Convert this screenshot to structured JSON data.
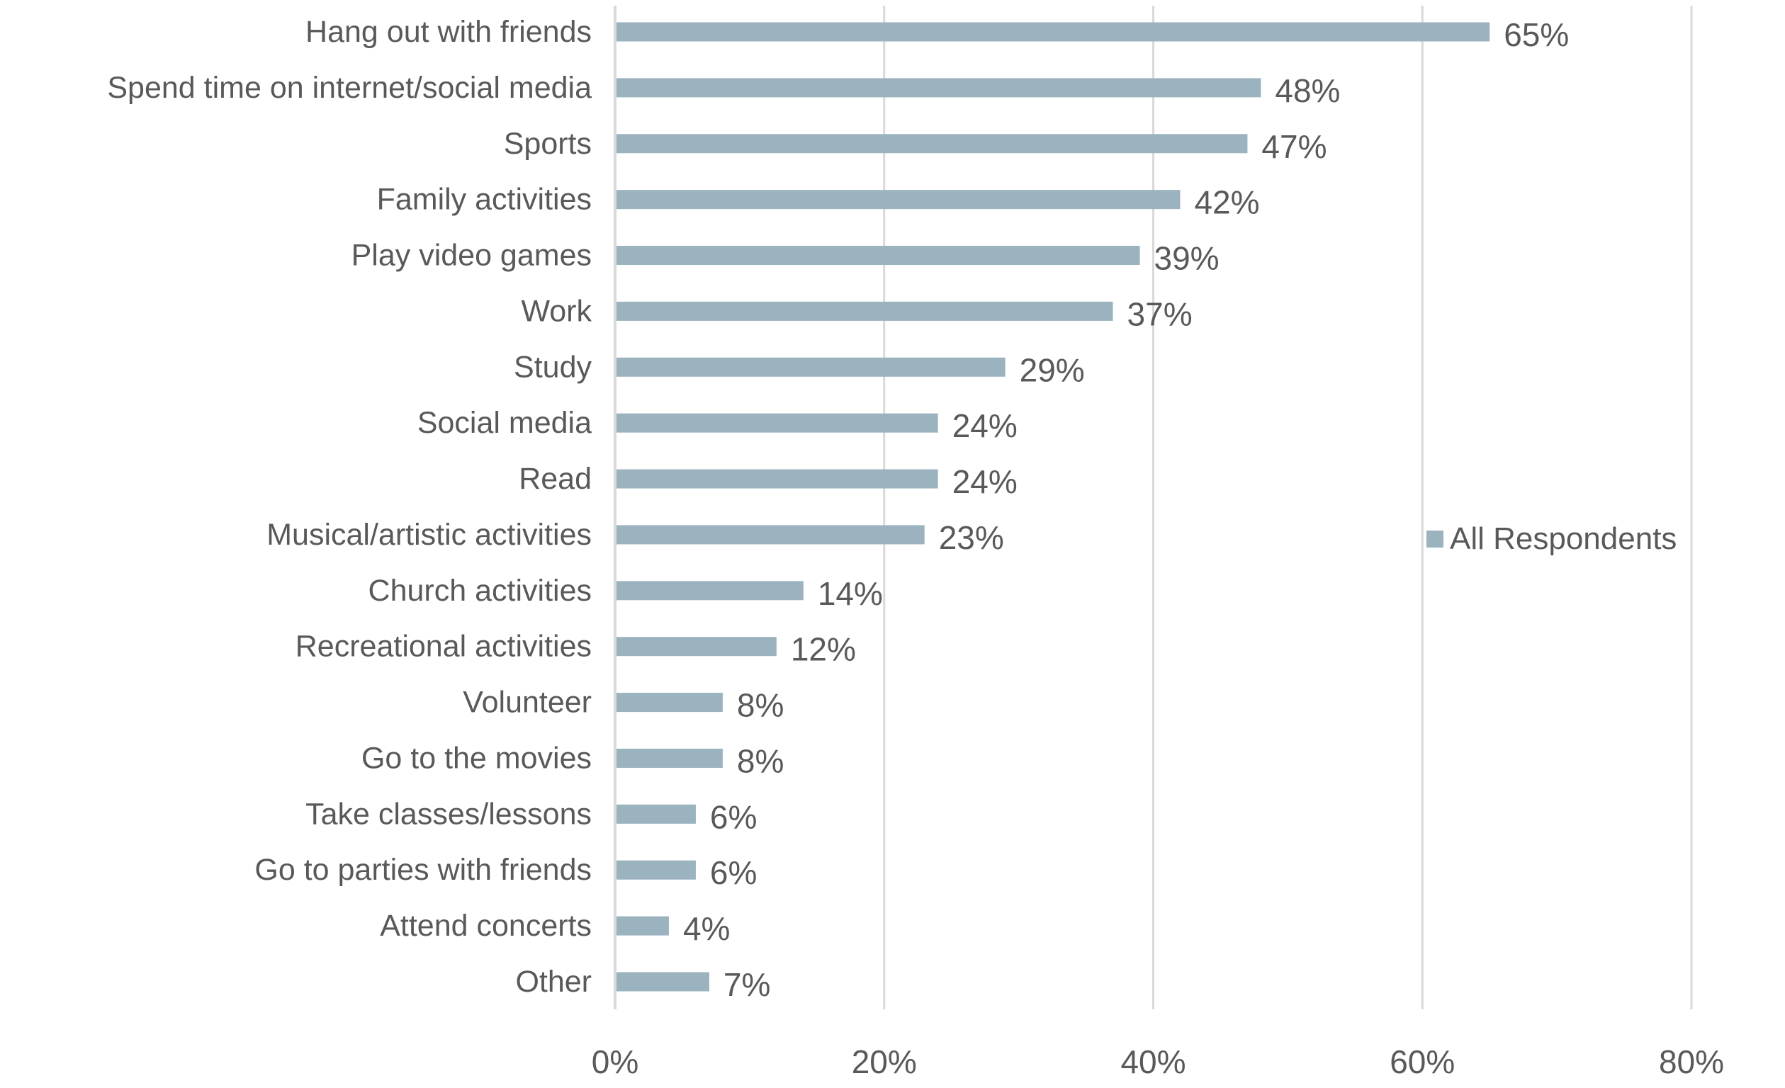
{
  "chart_data": {
    "type": "bar",
    "orientation": "horizontal",
    "title": "",
    "xlabel": "",
    "ylabel": "",
    "categories": [
      "Hang out with friends",
      "Spend time on internet/social media",
      "Sports",
      "Family activities",
      "Play video games",
      "Work",
      "Study",
      "Social media",
      "Read",
      "Musical/artistic activities",
      "Church activities",
      "Recreational activities",
      "Volunteer",
      "Go to the movies",
      "Take classes/lessons",
      "Go to parties with friends",
      "Attend concerts",
      "Other"
    ],
    "series": [
      {
        "name": "All Respondents",
        "color": "#9bb3bf",
        "values": [
          65,
          48,
          47,
          42,
          39,
          37,
          29,
          24,
          24,
          23,
          14,
          12,
          8,
          8,
          6,
          6,
          4,
          7
        ],
        "labels": [
          "65%",
          "48%",
          "47%",
          "42%",
          "39%",
          "37%",
          "29%",
          "24%",
          "24%",
          "23%",
          "14%",
          "12%",
          "8%",
          "8%",
          "6%",
          "6%",
          "4%",
          "7%"
        ]
      }
    ],
    "xlim": [
      0,
      80
    ],
    "xticks": [
      0,
      20,
      40,
      60,
      80
    ],
    "xtick_labels": [
      "0%",
      "20%",
      "40%",
      "60%",
      "80%"
    ],
    "grid": true,
    "gridline_color": "#d9d9d9",
    "legend_position": "right"
  }
}
